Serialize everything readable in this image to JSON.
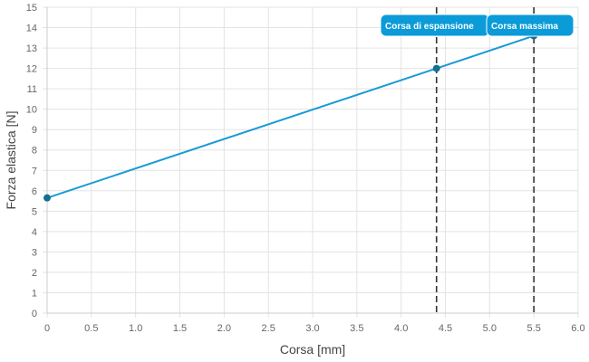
{
  "chart_data": {
    "type": "line",
    "xlabel": "Corsa [mm]",
    "ylabel": "Forza elastica [N]",
    "xlim": [
      0,
      6
    ],
    "ylim": [
      0,
      15
    ],
    "x_ticks": [
      "0",
      "0.5",
      "1.0",
      "1.5",
      "2.0",
      "2.5",
      "3.0",
      "3.5",
      "4.0",
      "4.5",
      "5.0",
      "5.5",
      "6.0"
    ],
    "y_ticks": [
      "0",
      "1",
      "2",
      "3",
      "4",
      "5",
      "6",
      "7",
      "8",
      "9",
      "10",
      "11",
      "12",
      "13",
      "14",
      "15"
    ],
    "grid": true,
    "series": [
      {
        "color": "#1a9ad6",
        "points": [
          {
            "x": 0,
            "y": 5.65
          },
          {
            "x": 4.4,
            "y": 12.0
          },
          {
            "x": 5.5,
            "y": 13.6
          }
        ]
      }
    ],
    "vertical_lines": [
      {
        "x": 4.4,
        "label": "Corsa di espansione"
      },
      {
        "x": 5.5,
        "label": "Corsa massima"
      }
    ],
    "colors": {
      "line": "#1a9ad6",
      "marker": "#14708f",
      "annotation_bg": "#0a9bd8",
      "grid": "#e3e3e3",
      "vline": "#333333"
    }
  }
}
